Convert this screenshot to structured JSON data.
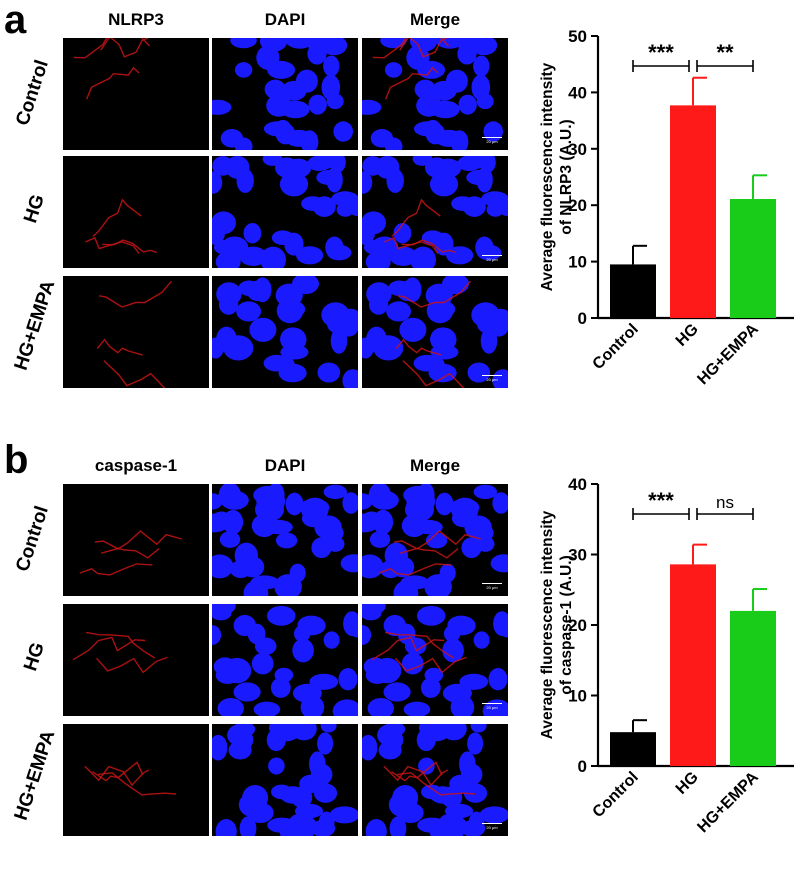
{
  "panels": [
    {
      "letter": "a",
      "columns": [
        "NLRP3",
        "DAPI",
        "Merge"
      ],
      "rows": [
        "Control",
        "HG",
        "HG+EMPA"
      ],
      "scale_bar": "20 μm"
    },
    {
      "letter": "b",
      "columns": [
        "caspase-1",
        "DAPI",
        "Merge"
      ],
      "rows": [
        "Control",
        "HG",
        "HG+EMPA"
      ],
      "scale_bar": "20 μm"
    }
  ],
  "chart_data": [
    {
      "type": "bar",
      "categories": [
        "Control",
        "HG",
        "HG+EMPA"
      ],
      "values": [
        9.5,
        37.7,
        21.1
      ],
      "errors": [
        3.3,
        4.9,
        4.2
      ],
      "colors": [
        "#000000",
        "#ff1a1a",
        "#19cc19"
      ],
      "ylabel_line1": "Average fluorescence intensity",
      "ylabel_line2": "of NLRP3 (A.U.)",
      "ylim": [
        0,
        50
      ],
      "yticks": [
        0,
        10,
        20,
        30,
        40,
        50
      ],
      "comparisons": [
        {
          "from": 0,
          "to": 1,
          "label": "***"
        },
        {
          "from": 1,
          "to": 2,
          "label": "**"
        }
      ]
    },
    {
      "type": "bar",
      "categories": [
        "Control",
        "HG",
        "HG+EMPA"
      ],
      "values": [
        4.8,
        28.6,
        22.0
      ],
      "errors": [
        1.7,
        2.8,
        3.1
      ],
      "colors": [
        "#000000",
        "#ff1a1a",
        "#19cc19"
      ],
      "ylabel_line1": "Average fluorescence intensity",
      "ylabel_line2": "of caspase-1 (A.U.)",
      "ylim": [
        0,
        40
      ],
      "yticks": [
        0,
        10,
        20,
        30,
        40
      ],
      "comparisons": [
        {
          "from": 0,
          "to": 1,
          "label": "***"
        },
        {
          "from": 1,
          "to": 2,
          "label": "ns"
        }
      ]
    }
  ]
}
